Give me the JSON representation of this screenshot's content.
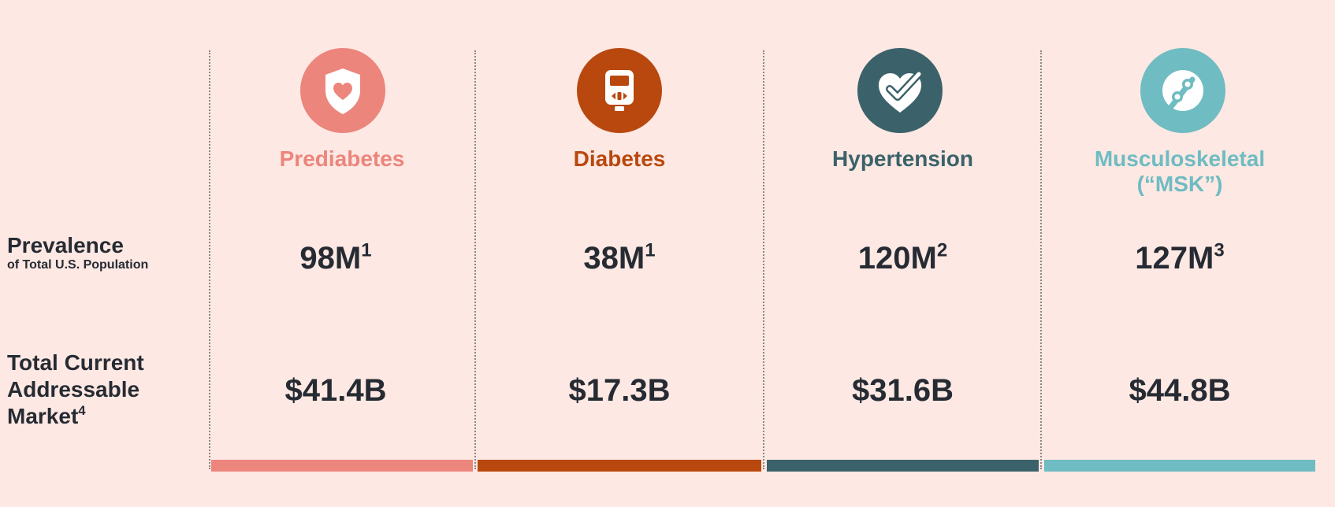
{
  "row_labels": {
    "prevalence_main": "Prevalence",
    "prevalence_sub": "of Total U.S. Population",
    "tam_line1": "Total Current",
    "tam_line2": "Addressable",
    "tam_line3": "Market",
    "tam_footnote": "4"
  },
  "columns": [
    {
      "title": "Prediabetes",
      "title_line2": "",
      "icon": "shield-heart-icon",
      "color": "#ec857c",
      "prevalence": "98M",
      "prevalence_footnote": "1",
      "tam": "$41.4B"
    },
    {
      "title": "Diabetes",
      "title_line2": "",
      "icon": "glucose-meter-icon",
      "color": "#b9480e",
      "prevalence": "38M",
      "prevalence_footnote": "1",
      "tam": "$17.3B"
    },
    {
      "title": "Hypertension",
      "title_line2": "",
      "icon": "heart-check-icon",
      "color": "#3b626a",
      "prevalence": "120M",
      "prevalence_footnote": "2",
      "tam": "$31.6B"
    },
    {
      "title": "Musculoskeletal",
      "title_line2": "(“MSK”)",
      "icon": "bone-joint-icon",
      "color": "#6fbcc2",
      "prevalence": "127M",
      "prevalence_footnote": "3",
      "tam": "$44.8B"
    }
  ]
}
